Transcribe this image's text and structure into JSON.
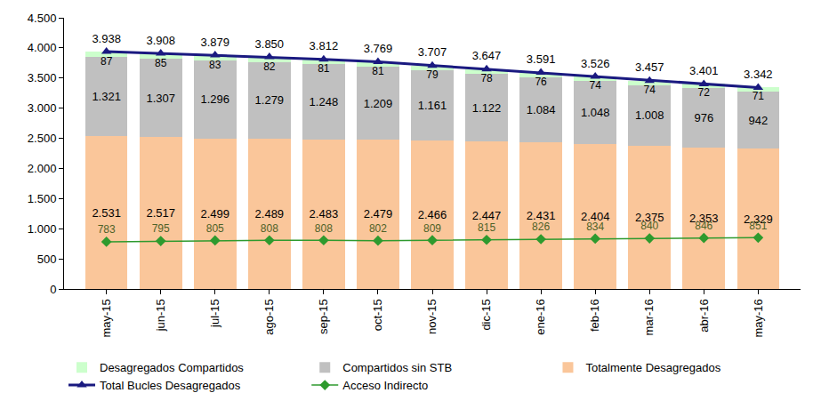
{
  "chart_data": {
    "type": "bar",
    "stacked": true,
    "data_labels": true,
    "grid": false,
    "legend": "bottom",
    "categories": [
      "may-15",
      "jun-15",
      "jul-15",
      "ago-15",
      "sep-15",
      "oct-15",
      "nov-15",
      "dic-15",
      "ene-16",
      "feb-16",
      "mar-16",
      "abr-16",
      "may-16"
    ],
    "ylim": [
      0,
      4500
    ],
    "yticks": [
      0,
      500,
      {
        "value": 1000,
        "label": "1.000"
      },
      {
        "value": 1500,
        "label": "1.500"
      },
      {
        "value": 2000,
        "label": "2.000"
      },
      {
        "value": 2500,
        "label": "2.500"
      },
      {
        "value": 3000,
        "label": "3.000"
      },
      {
        "value": 3500,
        "label": "3.500"
      },
      {
        "value": 4000,
        "label": "4.000"
      },
      {
        "value": 4500,
        "label": "4.500"
      }
    ],
    "series": [
      {
        "name": "Desagregados Compartidos",
        "type": "bar",
        "color": "#ccffcc",
        "values": [
          87,
          85,
          83,
          82,
          81,
          81,
          79,
          78,
          76,
          74,
          74,
          72,
          71
        ]
      },
      {
        "name": "Compartidos sin STB",
        "type": "bar",
        "color": "#c0c0c0",
        "values": [
          1321,
          1307,
          1296,
          1279,
          1248,
          1209,
          1161,
          1122,
          1084,
          1048,
          1008,
          976,
          942
        ],
        "value_labels": [
          "1.321",
          "1.307",
          "1.296",
          "1.279",
          "1.248",
          "1.209",
          "1.161",
          "1.122",
          "1.084",
          "1.048",
          "1.008",
          "976",
          "942"
        ]
      },
      {
        "name": "Totalmente Desagregados",
        "type": "bar",
        "color": "#fac69a",
        "values": [
          2531,
          2517,
          2499,
          2489,
          2483,
          2479,
          2466,
          2447,
          2431,
          2404,
          2375,
          2353,
          2329
        ],
        "value_labels": [
          "2.531",
          "2.517",
          "2.499",
          "2.489",
          "2.483",
          "2.479",
          "2.466",
          "2.447",
          "2.431",
          "2.404",
          "2.375",
          "2.353",
          "2.329"
        ]
      },
      {
        "name": "Total Bucles Desagregados",
        "type": "line",
        "color": "#1a1a80",
        "marker": "triangle-up",
        "line_style": "solid",
        "values": [
          3938,
          3908,
          3879,
          3850,
          3812,
          3769,
          3707,
          3647,
          3591,
          3526,
          3457,
          3401,
          3342
        ],
        "value_labels": [
          "3.938",
          "3.908",
          "3.879",
          "3.850",
          "3.812",
          "3.769",
          "3.707",
          "3.647",
          "3.591",
          "3.526",
          "3.457",
          "3.401",
          "3.342"
        ]
      },
      {
        "name": "Acceso Indirecto",
        "type": "line",
        "color": "#2e9a2e",
        "marker": "diamond",
        "line_style": "solid",
        "values": [
          783,
          795,
          805,
          808,
          808,
          802,
          809,
          815,
          826,
          834,
          840,
          846,
          851
        ]
      }
    ]
  }
}
